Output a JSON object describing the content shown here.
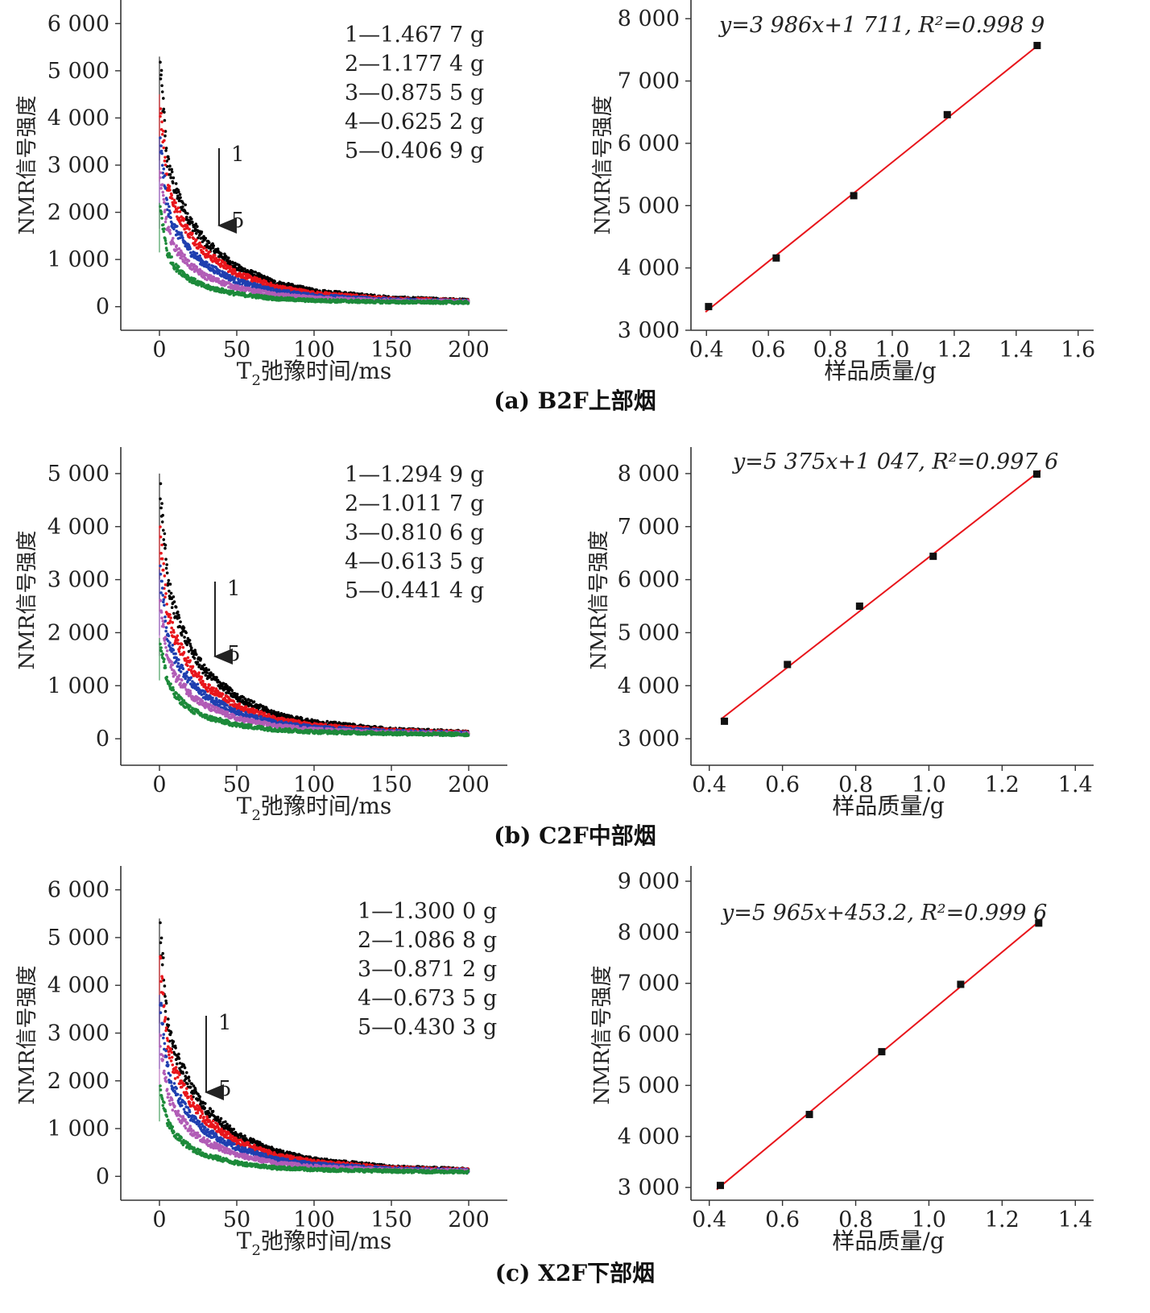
{
  "figure": {
    "rows": [
      {
        "caption": "(a) B2F上部烟",
        "decay": {
          "xlabel_main": "T",
          "xlabel_sub": "2",
          "xlabel_rest": "弛豫时间/ms",
          "ylabel": "NMR信号强度",
          "x_ticks": [
            "0",
            "50",
            "100",
            "150",
            "200"
          ],
          "y_ticks": [
            "0",
            "1 000",
            "2 000",
            "3 000",
            "4 000",
            "5 000",
            "6 000"
          ],
          "legend": [
            "1—1.467 7 g",
            "2—1.177 4 g",
            "3—0.875 5 g",
            "4—0.625 2 g",
            "5—0.406 9 g"
          ],
          "arrow_start": "1",
          "arrow_end": "5"
        },
        "fit": {
          "xlabel": "样品质量/g",
          "ylabel": "NMR信号强度",
          "x_ticks": [
            "0.4",
            "0.6",
            "0.8",
            "1.0",
            "1.2",
            "1.4",
            "1.6"
          ],
          "y_ticks": [
            "3 000",
            "4 000",
            "5 000",
            "6 000",
            "7 000",
            "8 000"
          ],
          "equation": "y=3 986x+1 711, R²=0.998 9"
        }
      },
      {
        "caption": "(b) C2F中部烟",
        "decay": {
          "xlabel_main": "T",
          "xlabel_sub": "2",
          "xlabel_rest": "弛豫时间/ms",
          "ylabel": "NMR信号强度",
          "x_ticks": [
            "0",
            "50",
            "100",
            "150",
            "200"
          ],
          "y_ticks": [
            "0",
            "1 000",
            "2 000",
            "3 000",
            "4 000",
            "5 000"
          ],
          "legend": [
            "1—1.294 9 g",
            "2—1.011 7 g",
            "3—0.810 6 g",
            "4—0.613 5 g",
            "5—0.441 4 g"
          ],
          "arrow_start": "1",
          "arrow_end": "5"
        },
        "fit": {
          "xlabel": "样品质量/g",
          "ylabel": "NMR信号强度",
          "x_ticks": [
            "0.4",
            "0.6",
            "0.8",
            "1.0",
            "1.2",
            "1.4"
          ],
          "y_ticks": [
            "3 000",
            "4 000",
            "5 000",
            "6 000",
            "7 000",
            "8 000"
          ],
          "equation": "y=5 375x+1 047, R²=0.997 6"
        }
      },
      {
        "caption": "(c) X2F下部烟",
        "decay": {
          "xlabel_main": "T",
          "xlabel_sub": "2",
          "xlabel_rest": "弛豫时间/ms",
          "ylabel": "NMR信号强度",
          "x_ticks": [
            "0",
            "50",
            "100",
            "150",
            "200"
          ],
          "y_ticks": [
            "0",
            "1 000",
            "2 000",
            "3 000",
            "4 000",
            "5 000",
            "6 000"
          ],
          "legend": [
            "1—1.300 0 g",
            "2—1.086 8 g",
            "3—0.871 2 g",
            "4—0.673 5 g",
            "5—0.430 3 g"
          ],
          "arrow_start": "1",
          "arrow_end": "5"
        },
        "fit": {
          "xlabel": "样品质量/g",
          "ylabel": "NMR信号强度",
          "x_ticks": [
            "0.4",
            "0.6",
            "0.8",
            "1.0",
            "1.2",
            "1.4"
          ],
          "y_ticks": [
            "3 000",
            "4 000",
            "5 000",
            "6 000",
            "7 000",
            "8 000",
            "9 000"
          ],
          "equation": "y=5 965x+453.2, R²=0.999 6"
        }
      }
    ]
  },
  "chart_data": [
    {
      "type": "scatter",
      "title": "",
      "xlabel": "T2弛豫时间/ms",
      "ylabel": "NMR信号强度",
      "xlim": [
        -25,
        225
      ],
      "ylim": [
        -500,
        6500
      ],
      "series_colors": [
        "#000000",
        "#e8151b",
        "#1f3fb0",
        "#b15cb6",
        "#1d8a3a"
      ],
      "series": [
        {
          "name": "1—1.467 7 g",
          "mass_g": 1.4677,
          "peak": 5300,
          "x": [
            0,
            5,
            10,
            20,
            30,
            50,
            75,
            100,
            150,
            200
          ],
          "values": [
            5300,
            3100,
            2500,
            1800,
            1350,
            830,
            500,
            330,
            180,
            130
          ]
        },
        {
          "name": "2—1.177 4 g",
          "mass_g": 1.1774,
          "peak": 4500,
          "x": [
            0,
            5,
            10,
            20,
            30,
            50,
            75,
            100,
            150,
            200
          ],
          "values": [
            4500,
            2650,
            2100,
            1520,
            1130,
            700,
            420,
            280,
            160,
            120
          ]
        },
        {
          "name": "3—0.875 5 g",
          "mass_g": 0.8755,
          "peak": 3600,
          "x": [
            0,
            5,
            10,
            20,
            30,
            50,
            75,
            100,
            150,
            200
          ],
          "values": [
            3600,
            2100,
            1650,
            1180,
            880,
            540,
            330,
            230,
            140,
            110
          ]
        },
        {
          "name": "4—0.625 2 g",
          "mass_g": 0.6252,
          "peak": 2900,
          "x": [
            0,
            5,
            10,
            20,
            30,
            50,
            75,
            100,
            150,
            200
          ],
          "values": [
            2900,
            1650,
            1250,
            870,
            640,
            400,
            250,
            180,
            120,
            100
          ]
        },
        {
          "name": "5—0.406 9 g",
          "mass_g": 0.4069,
          "peak": 2200,
          "x": [
            0,
            5,
            10,
            20,
            30,
            50,
            75,
            100,
            150,
            200
          ],
          "values": [
            2200,
            1150,
            850,
            580,
            420,
            270,
            170,
            130,
            100,
            90
          ]
        }
      ]
    },
    {
      "type": "scatter",
      "title": "",
      "xlabel": "样品质量/g",
      "ylabel": "NMR信号强度",
      "xlim": [
        0.35,
        1.65
      ],
      "ylim": [
        3000,
        8300
      ],
      "series": [
        {
          "name": "",
          "x": [
            0.4069,
            0.6252,
            0.8755,
            1.1774,
            1.4677
          ],
          "values": [
            3380,
            4160,
            5160,
            6460,
            7570
          ]
        }
      ],
      "fit": {
        "slope": 3986,
        "intercept": 1711,
        "r2": 0.9989,
        "color": "#e8151b"
      }
    },
    {
      "type": "scatter",
      "title": "",
      "xlabel": "T2弛豫时间/ms",
      "ylabel": "NMR信号强度",
      "xlim": [
        -25,
        225
      ],
      "ylim": [
        -500,
        5500
      ],
      "series_colors": [
        "#000000",
        "#e8151b",
        "#1f3fb0",
        "#b15cb6",
        "#1d8a3a"
      ],
      "series": [
        {
          "name": "1—1.294 9 g",
          "mass_g": 1.2949,
          "peak": 5000,
          "x": [
            0,
            5,
            10,
            20,
            30,
            50,
            75,
            100,
            150,
            200
          ],
          "values": [
            5000,
            3000,
            2400,
            1700,
            1250,
            780,
            460,
            310,
            170,
            120
          ]
        },
        {
          "name": "2—1.011 7 g",
          "mass_g": 1.0117,
          "peak": 4000,
          "x": [
            0,
            5,
            10,
            20,
            30,
            50,
            75,
            100,
            150,
            200
          ],
          "values": [
            4000,
            2400,
            1900,
            1360,
            1000,
            620,
            370,
            250,
            150,
            110
          ]
        },
        {
          "name": "3—0.810 6 g",
          "mass_g": 0.8106,
          "peak": 3200,
          "x": [
            0,
            5,
            10,
            20,
            30,
            50,
            75,
            100,
            150,
            200
          ],
          "values": [
            3200,
            1950,
            1520,
            1080,
            800,
            490,
            300,
            210,
            130,
            100
          ]
        },
        {
          "name": "4—0.613 5 g",
          "mass_g": 0.6135,
          "peak": 2600,
          "x": [
            0,
            5,
            10,
            20,
            30,
            50,
            75,
            100,
            150,
            200
          ],
          "values": [
            2600,
            1560,
            1200,
            840,
            620,
            380,
            240,
            170,
            110,
            90
          ]
        },
        {
          "name": "5—0.441 4 g",
          "mass_g": 0.4414,
          "peak": 1900,
          "x": [
            0,
            5,
            10,
            20,
            30,
            50,
            75,
            100,
            150,
            200
          ],
          "values": [
            1900,
            1100,
            820,
            560,
            410,
            260,
            170,
            130,
            100,
            80
          ]
        }
      ]
    },
    {
      "type": "scatter",
      "title": "",
      "xlabel": "样品质量/g",
      "ylabel": "NMR信号强度",
      "xlim": [
        0.35,
        1.45
      ],
      "ylim": [
        2500,
        8500
      ],
      "series": [
        {
          "name": "",
          "x": [
            0.4414,
            0.6135,
            0.8106,
            1.0117,
            1.2949
          ],
          "values": [
            3330,
            4400,
            5500,
            6440,
            7990
          ]
        }
      ],
      "fit": {
        "slope": 5375,
        "intercept": 1047,
        "r2": 0.9976,
        "color": "#e8151b"
      }
    },
    {
      "type": "scatter",
      "title": "",
      "xlabel": "T2弛豫时间/ms",
      "ylabel": "NMR信号强度",
      "xlim": [
        -25,
        225
      ],
      "ylim": [
        -500,
        6500
      ],
      "series_colors": [
        "#000000",
        "#e8151b",
        "#1f3fb0",
        "#b15cb6",
        "#1d8a3a"
      ],
      "series": [
        {
          "name": "1—1.300 0 g",
          "mass_g": 1.3,
          "peak": 5400,
          "x": [
            0,
            5,
            10,
            20,
            30,
            50,
            75,
            100,
            150,
            200
          ],
          "values": [
            5400,
            3200,
            2600,
            1870,
            1400,
            860,
            520,
            350,
            190,
            140
          ]
        },
        {
          "name": "2—1.086 8 g",
          "mass_g": 1.0868,
          "peak": 4600,
          "x": [
            0,
            5,
            10,
            20,
            30,
            50,
            75,
            100,
            150,
            200
          ],
          "values": [
            4600,
            2750,
            2200,
            1580,
            1180,
            730,
            440,
            300,
            170,
            130
          ]
        },
        {
          "name": "3—0.871 2 g",
          "mass_g": 0.8712,
          "peak": 3800,
          "x": [
            0,
            5,
            10,
            20,
            30,
            50,
            75,
            100,
            150,
            200
          ],
          "values": [
            3800,
            2250,
            1780,
            1270,
            950,
            590,
            360,
            250,
            150,
            120
          ]
        },
        {
          "name": "4—0.673 5 g",
          "mass_g": 0.6735,
          "peak": 3000,
          "x": [
            0,
            5,
            10,
            20,
            30,
            50,
            75,
            100,
            150,
            200
          ],
          "values": [
            3000,
            1780,
            1380,
            970,
            720,
            450,
            280,
            200,
            130,
            110
          ]
        },
        {
          "name": "5—0.430 3 g",
          "mass_g": 0.4303,
          "peak": 1900,
          "x": [
            0,
            5,
            10,
            20,
            30,
            50,
            75,
            100,
            150,
            200
          ],
          "values": [
            1900,
            1150,
            870,
            600,
            440,
            280,
            180,
            140,
            110,
            90
          ]
        }
      ]
    },
    {
      "type": "scatter",
      "title": "",
      "xlabel": "样品质量/g",
      "ylabel": "NMR信号强度",
      "xlim": [
        0.35,
        1.45
      ],
      "ylim": [
        2750,
        9300
      ],
      "series": [
        {
          "name": "",
          "x": [
            0.4303,
            0.6735,
            0.8712,
            1.0868,
            1.3
          ],
          "values": [
            3040,
            4430,
            5660,
            6980,
            8180
          ]
        }
      ],
      "fit": {
        "slope": 5965,
        "intercept": 453.2,
        "r2": 0.9996,
        "color": "#e8151b"
      }
    }
  ]
}
